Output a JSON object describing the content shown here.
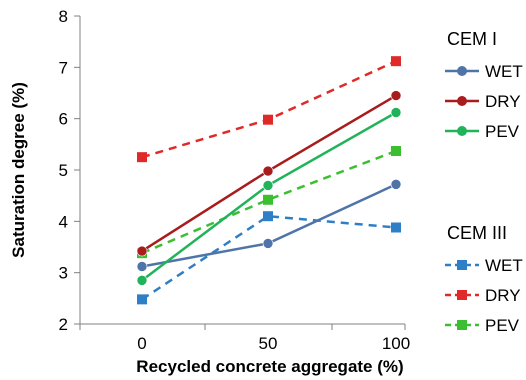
{
  "chart_data": {
    "type": "line",
    "x": [
      0,
      50,
      100
    ],
    "xlabel": "Recycled concrete aggregate (%)",
    "ylabel": "Saturation degree (%)",
    "ylim": [
      2,
      8
    ],
    "yticks": [
      2,
      3,
      4,
      5,
      6,
      7,
      8
    ],
    "xtick_labels": [
      "0",
      "50",
      "100"
    ],
    "grid": false,
    "legend_position": "right",
    "legend_groups": [
      {
        "title": "CEM I",
        "entries": [
          "WET",
          "DRY",
          "PEV"
        ]
      },
      {
        "title": "CEM III",
        "entries": [
          "WET",
          "DRY",
          "PEV"
        ]
      }
    ],
    "series": [
      {
        "name": "WET",
        "group": "CEM I",
        "color": "#4f75a8",
        "marker": "circle",
        "dash": "solid",
        "values": [
          3.12,
          3.57,
          4.72
        ]
      },
      {
        "name": "DRY",
        "group": "CEM I",
        "color": "#a81c1c",
        "marker": "circle",
        "dash": "solid",
        "values": [
          3.42,
          4.98,
          6.45
        ]
      },
      {
        "name": "PEV",
        "group": "CEM I",
        "color": "#21b35a",
        "marker": "circle",
        "dash": "solid",
        "values": [
          2.85,
          4.7,
          6.12
        ]
      },
      {
        "name": "WET",
        "group": "CEM III",
        "color": "#2f7fc7",
        "marker": "square",
        "dash": "dashed",
        "values": [
          2.48,
          4.1,
          3.88
        ]
      },
      {
        "name": "DRY",
        "group": "CEM III",
        "color": "#e02a2a",
        "marker": "square",
        "dash": "dashed",
        "values": [
          5.25,
          5.98,
          7.12
        ]
      },
      {
        "name": "PEV",
        "group": "CEM III",
        "color": "#3bbf30",
        "marker": "square",
        "dash": "dashed",
        "values": [
          3.38,
          4.42,
          5.37
        ]
      }
    ]
  }
}
